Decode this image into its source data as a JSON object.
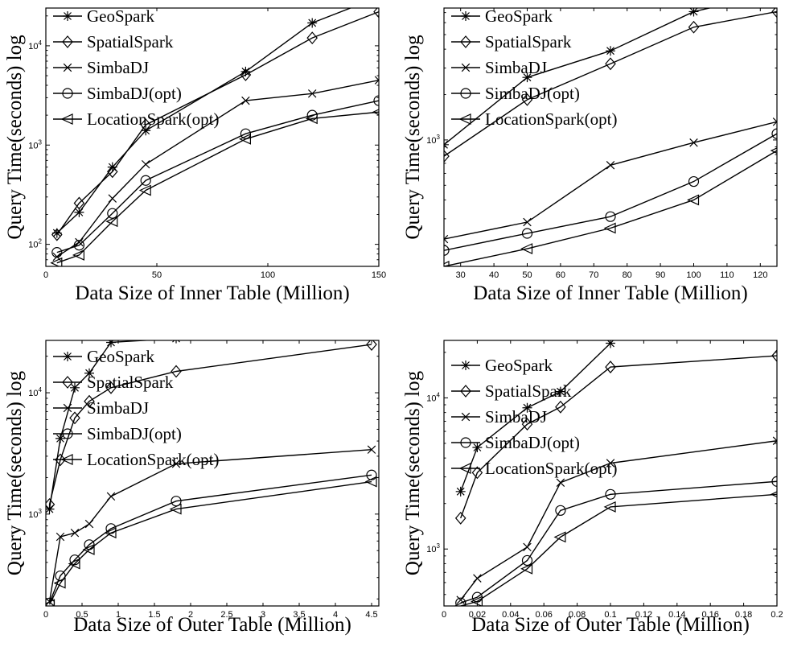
{
  "chart_data": [
    {
      "type": "line",
      "xlabel": "Data Size of Inner Table (Million)",
      "ylabel": "Query Time(seconds) log",
      "xlim": [
        0,
        150
      ],
      "ylim": [
        60,
        24000
      ],
      "yscale": "log",
      "xticks": [
        0,
        50,
        100,
        150
      ],
      "xtick_labels": [
        "0",
        "50",
        "100",
        "150"
      ],
      "yticks": [
        100,
        1000,
        10000
      ],
      "legend_loc": "top-left",
      "grid": false,
      "series": [
        {
          "name": "GeoSpark",
          "marker": "star",
          "x": [
            5,
            15,
            30,
            45,
            90,
            120,
            150
          ],
          "y": [
            130,
            210,
            600,
            1400,
            5500,
            17000,
            31000
          ]
        },
        {
          "name": "SpatialSpark",
          "marker": "diamond",
          "x": [
            5,
            15,
            30,
            45,
            90,
            120,
            150
          ],
          "y": [
            125,
            260,
            540,
            1600,
            5100,
            12000,
            22000
          ]
        },
        {
          "name": "SimbaDJ",
          "marker": "x",
          "x": [
            5,
            15,
            30,
            45,
            90,
            120,
            150
          ],
          "y": [
            75,
            105,
            290,
            640,
            2800,
            3300,
            4500
          ]
        },
        {
          "name": "SimbaDJ(opt)",
          "marker": "circle",
          "x": [
            5,
            15,
            30,
            45,
            90,
            120,
            150
          ],
          "y": [
            83,
            98,
            205,
            440,
            1300,
            2000,
            2800
          ]
        },
        {
          "name": "LocationSpark(opt)",
          "marker": "triangle-left",
          "x": [
            5,
            15,
            30,
            45,
            90,
            120,
            150
          ],
          "y": [
            65,
            78,
            170,
            350,
            1150,
            1850,
            2150
          ]
        }
      ]
    },
    {
      "type": "line",
      "xlabel": "Data Size of Inner Table (Million)",
      "ylabel": "Query Time(seconds) log",
      "xlim": [
        25,
        125
      ],
      "ylim": [
        145,
        7500
      ],
      "yscale": "log",
      "xticks": [
        30,
        40,
        50,
        60,
        70,
        80,
        90,
        100,
        110,
        120
      ],
      "xtick_labels": [
        "30",
        "40",
        "50",
        "60",
        "70",
        "80",
        "90",
        "100",
        "110",
        "120"
      ],
      "yticks": [
        1000
      ],
      "legend_loc": "top-left",
      "grid": false,
      "series": [
        {
          "name": "GeoSpark",
          "marker": "star",
          "x": [
            25,
            50,
            75,
            100,
            125
          ],
          "y": [
            930,
            2600,
            3900,
            7100,
            9500
          ]
        },
        {
          "name": "SpatialSpark",
          "marker": "diamond",
          "x": [
            25,
            50,
            75,
            100,
            125
          ],
          "y": [
            780,
            1850,
            3200,
            5600,
            7100
          ]
        },
        {
          "name": "SimbaDJ",
          "marker": "x",
          "x": [
            25,
            50,
            75,
            100,
            125
          ],
          "y": [
            220,
            285,
            680,
            960,
            1320
          ]
        },
        {
          "name": "SimbaDJ(opt)",
          "marker": "circle",
          "x": [
            25,
            50,
            75,
            100,
            125
          ],
          "y": [
            185,
            240,
            310,
            530,
            1100
          ]
        },
        {
          "name": "LocationSpark(opt)",
          "marker": "triangle-left",
          "x": [
            25,
            50,
            75,
            100,
            125
          ],
          "y": [
            145,
            190,
            260,
            400,
            850
          ]
        }
      ]
    },
    {
      "type": "line",
      "xlabel": "Data Size of Outer Table (Million)",
      "ylabel": "Query Time(seconds) log",
      "xlim": [
        0,
        4.6
      ],
      "ylim": [
        175,
        27000
      ],
      "yscale": "log",
      "xticks": [
        0,
        0.5,
        1,
        1.5,
        2,
        2.5,
        3,
        3.5,
        4,
        4.5
      ],
      "xtick_labels": [
        "0",
        "0.5",
        "1",
        "1.5",
        "2",
        "2.5",
        "3",
        "3.5",
        "4",
        "4.5"
      ],
      "yticks": [
        1000,
        10000
      ],
      "legend_loc": "top-left",
      "grid": false,
      "series": [
        {
          "name": "GeoSpark",
          "marker": "star",
          "x": [
            0.05,
            0.2,
            0.4,
            0.6,
            0.9,
            1.8
          ],
          "y": [
            1100,
            4200,
            11000,
            14500,
            26000,
            28000
          ]
        },
        {
          "name": "SpatialSpark",
          "marker": "diamond",
          "x": [
            0.05,
            0.2,
            0.4,
            0.6,
            0.9,
            1.8,
            4.5
          ],
          "y": [
            1200,
            2800,
            6200,
            8500,
            11000,
            15000,
            25000
          ]
        },
        {
          "name": "SimbaDJ",
          "marker": "x",
          "x": [
            0.05,
            0.2,
            0.4,
            0.6,
            0.9,
            1.8,
            4.5
          ],
          "y": [
            190,
            650,
            700,
            830,
            1400,
            2600,
            3400
          ]
        },
        {
          "name": "SimbaDJ(opt)",
          "marker": "circle",
          "x": [
            0.05,
            0.2,
            0.4,
            0.6,
            0.9,
            1.8,
            4.5
          ],
          "y": [
            185,
            310,
            420,
            560,
            760,
            1280,
            2100
          ]
        },
        {
          "name": "LocationSpark(opt)",
          "marker": "triangle-left",
          "x": [
            0.05,
            0.2,
            0.4,
            0.6,
            0.9,
            1.8,
            4.5
          ],
          "y": [
            180,
            270,
            390,
            510,
            700,
            1100,
            1850
          ]
        }
      ]
    },
    {
      "type": "line",
      "xlabel": "Data Size of Outer Table (Million)",
      "ylabel": "Query Time(seconds) log",
      "xlim": [
        0,
        0.2
      ],
      "ylim": [
        420,
        24000
      ],
      "yscale": "log",
      "xticks": [
        0,
        0.02,
        0.04,
        0.06,
        0.08,
        0.1,
        0.12,
        0.14,
        0.16,
        0.18,
        0.2
      ],
      "xtick_labels": [
        "0",
        "0.02",
        "0.04",
        "0.06",
        "0.08",
        "0.1",
        "0.12",
        "0.14",
        "0.16",
        "0.18",
        "0.2"
      ],
      "yticks": [
        1000,
        10000
      ],
      "legend_loc": "top-left",
      "grid": false,
      "series": [
        {
          "name": "GeoSpark",
          "marker": "star",
          "x": [
            0.01,
            0.02,
            0.05,
            0.07,
            0.1
          ],
          "y": [
            2400,
            4700,
            8600,
            11000,
            23000
          ]
        },
        {
          "name": "SpatialSpark",
          "marker": "diamond",
          "x": [
            0.01,
            0.02,
            0.05,
            0.07,
            0.1,
            0.2
          ],
          "y": [
            1600,
            3200,
            6700,
            8700,
            16000,
            19000
          ]
        },
        {
          "name": "SimbaDJ",
          "marker": "x",
          "x": [
            0.01,
            0.02,
            0.05,
            0.07,
            0.1,
            0.2
          ],
          "y": [
            460,
            640,
            1030,
            2750,
            3700,
            5200
          ]
        },
        {
          "name": "SimbaDJ(opt)",
          "marker": "circle",
          "x": [
            0.01,
            0.02,
            0.05,
            0.07,
            0.1,
            0.2
          ],
          "y": [
            440,
            480,
            840,
            1800,
            2300,
            2800
          ]
        },
        {
          "name": "LocationSpark(opt)",
          "marker": "triangle-left",
          "x": [
            0.01,
            0.02,
            0.05,
            0.07,
            0.1,
            0.2
          ],
          "y": [
            420,
            450,
            740,
            1200,
            1900,
            2300
          ]
        }
      ]
    }
  ]
}
